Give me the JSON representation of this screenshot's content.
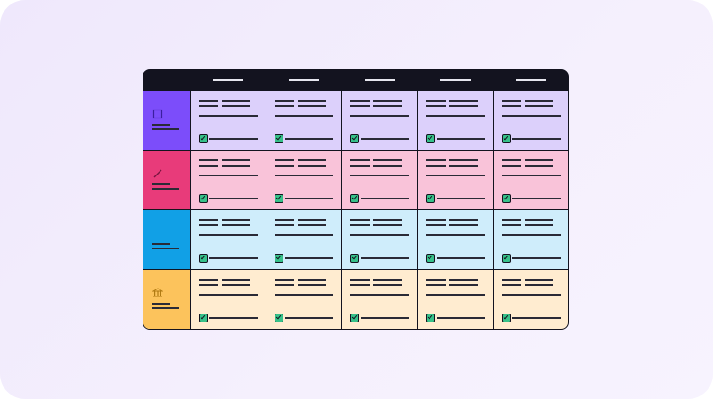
{
  "colors": {
    "frame": "#13131f",
    "rows": [
      {
        "head": "#7c4dfa",
        "cell": "#dcd0fb"
      },
      {
        "head": "#e83b7a",
        "cell": "#f9c3d9"
      },
      {
        "head": "#11a0e6",
        "cell": "#cfedfb"
      },
      {
        "head": "#fcc35c",
        "cell": "#ffecd0"
      }
    ],
    "check": "#37c28a"
  },
  "rows": [
    {
      "icon": "square-icon"
    },
    {
      "icon": "pencil-icon"
    },
    {
      "icon": "blank"
    },
    {
      "icon": "bank-icon"
    }
  ]
}
